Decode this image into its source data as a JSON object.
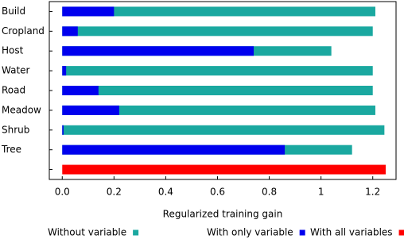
{
  "chart_data": {
    "type": "hbar-overlap",
    "categories": [
      "Build",
      "Cropland",
      "Host",
      "Water",
      "Road",
      "Meadow",
      "Shrub",
      "Tree",
      null
    ],
    "series": [
      {
        "name": "Without variable",
        "color": "#1aa8a0",
        "values": [
          1.21,
          1.2,
          1.04,
          1.2,
          1.2,
          1.21,
          1.245,
          1.12,
          null
        ]
      },
      {
        "name": "With only variable",
        "color": "#0000ee",
        "values": [
          0.2,
          0.06,
          0.74,
          0.015,
          0.14,
          0.22,
          0.005,
          0.86,
          null
        ]
      },
      {
        "name": "With all variables",
        "color": "#ff0000",
        "values": [
          null,
          null,
          null,
          null,
          null,
          null,
          null,
          null,
          1.25
        ]
      }
    ],
    "x_label": "Regularized training gain",
    "xlim": [
      -0.05,
      1.29
    ],
    "xticks": [
      {
        "value": 0,
        "label": "0.0"
      },
      0.2,
      0.4,
      0.6,
      0.8,
      1,
      1.2
    ],
    "legend": "bottom"
  }
}
